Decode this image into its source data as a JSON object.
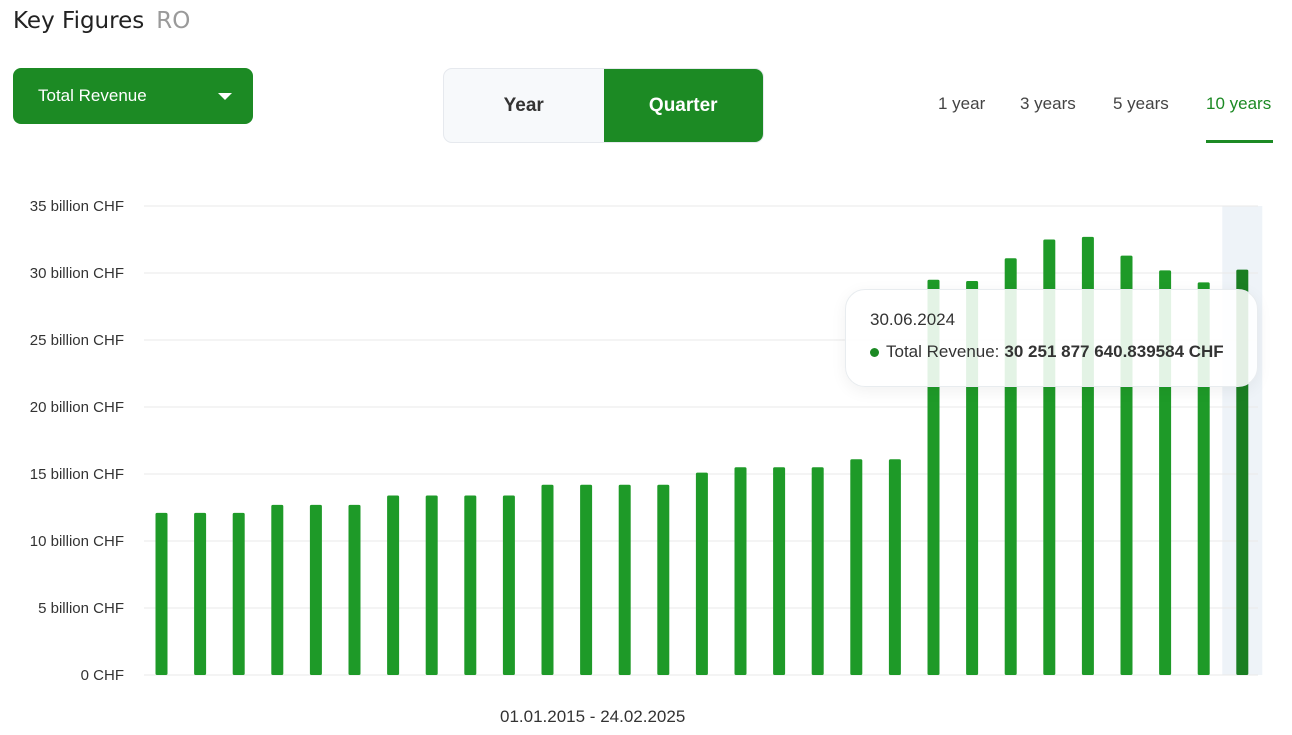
{
  "header": {
    "title": "Key Figures",
    "ticker": "RO"
  },
  "metric_dropdown": {
    "label": "Total Revenue"
  },
  "period_toggle": {
    "year_label": "Year",
    "quarter_label": "Quarter",
    "selected": "Quarter"
  },
  "ranges": [
    {
      "label": "1 year",
      "active": false
    },
    {
      "label": "3 years",
      "active": false
    },
    {
      "label": "5 years",
      "active": false
    },
    {
      "label": "10 years",
      "active": true
    }
  ],
  "colors": {
    "accent": "#1c8a24",
    "bar": "#1e9a28",
    "bar_highlight": "#1a7e22",
    "highlight_band": "#eef3f8",
    "grid": "#e9e9e9"
  },
  "date_range": "01.01.2015 - 24.02.2025",
  "tooltip": {
    "date": "30.06.2024",
    "series_label": "Total Revenue:",
    "value": "30 251 877 640.839584 CHF"
  },
  "chart_data": {
    "type": "bar",
    "y_ticks": [
      "0 CHF",
      "5 billion CHF",
      "10 billion CHF",
      "15 billion CHF",
      "20 billion CHF",
      "25 billion CHF",
      "30 billion CHF",
      "35 billion CHF"
    ],
    "ylim": [
      0,
      35
    ],
    "series": [
      {
        "values": [
          12.1,
          12.1,
          12.1,
          12.7,
          12.7,
          12.7,
          13.4,
          13.4,
          13.4,
          13.4,
          14.2,
          14.2,
          14.2,
          14.2,
          15.1,
          15.5,
          15.5,
          15.5,
          16.1,
          16.1,
          29.5,
          29.4,
          31.1,
          32.5,
          32.7,
          31.3,
          30.2,
          29.3,
          30.25
        ]
      }
    ],
    "highlight_index": 28
  }
}
